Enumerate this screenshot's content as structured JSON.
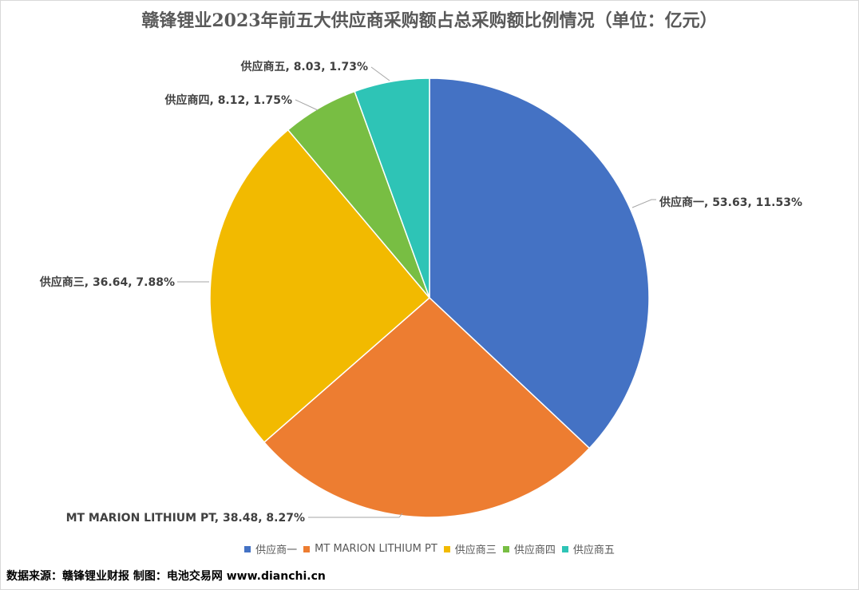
{
  "chart_data": {
    "type": "pie",
    "title": "赣锋锂业2023年前五大供应商采购额占总采购额比例情况（单位：亿元）",
    "categories": [
      "供应商一",
      "MT MARION LITHIUM PT",
      "供应商三",
      "供应商四",
      "供应商五"
    ],
    "values": [
      53.63,
      38.48,
      36.64,
      8.12,
      8.03
    ],
    "percent_labels": [
      "11.53%",
      "8.27%",
      "7.88%",
      "1.75%",
      "1.73%"
    ],
    "data_labels": [
      "供应商一, 53.63, 11.53%",
      "MT MARION LITHIUM PT, 38.48, 8.27%",
      "供应商三, 36.64, 7.88%",
      "供应商四, 8.12, 1.75%",
      "供应商五, 8.03, 1.73%"
    ],
    "colors": [
      "#4472C4",
      "#ED7D31",
      "#F2BA00",
      "#78BE43",
      "#2EC4B6"
    ],
    "legend": "bottom"
  },
  "footer": {
    "source": "数据来源：赣锋锂业财报  制图：电池交易网 www.dianchi.cn"
  }
}
